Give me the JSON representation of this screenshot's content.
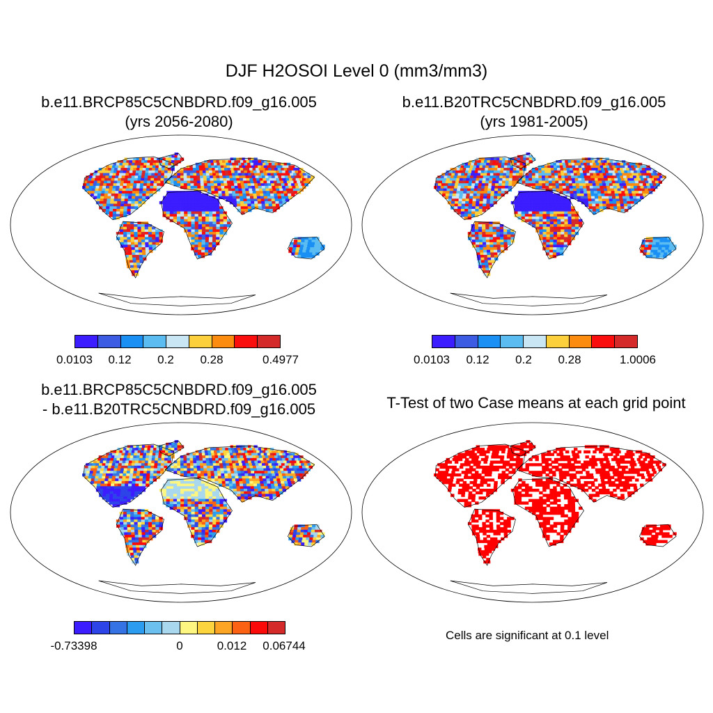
{
  "figure": {
    "title": "DJF H2OSOI Level 0 (mm3/mm3)"
  },
  "panels": [
    {
      "id": "case1",
      "title_lines": [
        "b.e11.BRCP85C5CNBDRD.f09_g16.005",
        "(yrs 2056-2080)"
      ],
      "colorbar": {
        "colors": [
          "#3b1dff",
          "#3c5ce4",
          "#1a90f5",
          "#5bbcf2",
          "#c8e6f4",
          "#fbd03c",
          "#fb8c10",
          "#fb0e0e",
          "#d42a2a"
        ],
        "labels": [
          "0.0103",
          "0.12",
          "0.2",
          "0.28",
          "0.4977"
        ]
      }
    },
    {
      "id": "case2",
      "title_lines": [
        "b.e11.B20TRC5CNBDRD.f09_g16.005",
        "(yrs 1981-2005)"
      ],
      "colorbar": {
        "colors": [
          "#3b1dff",
          "#3c5ce4",
          "#1a90f5",
          "#5bbcf2",
          "#c8e6f4",
          "#fbd03c",
          "#fb8c10",
          "#fb0e0e",
          "#d42a2a"
        ],
        "labels": [
          "0.0103",
          "0.12",
          "0.2",
          "0.28",
          "1.0006"
        ]
      }
    },
    {
      "id": "diff",
      "title_lines": [
        "b.e11.BRCP85C5CNBDRD.f09_g16.005",
        "- b.e11.B20TRC5CNBDRD.f09_g16.005"
      ],
      "colorbar": {
        "colors": [
          "#3b1dff",
          "#2d45e8",
          "#3572e3",
          "#2c9cf0",
          "#6cc0f0",
          "#a9d8ee",
          "#fdf680",
          "#fbd43e",
          "#fca424",
          "#fc6214",
          "#fb0a0a",
          "#d42a2a"
        ],
        "labels": [
          "-0.73398",
          "0",
          "0.012",
          "0.06744"
        ]
      }
    },
    {
      "id": "ttest",
      "title_lines": [
        "T-Test of two Case means at each grid point"
      ],
      "note": "Cells are significant at 0.1 level",
      "significant_color": "#ff0000"
    }
  ]
}
